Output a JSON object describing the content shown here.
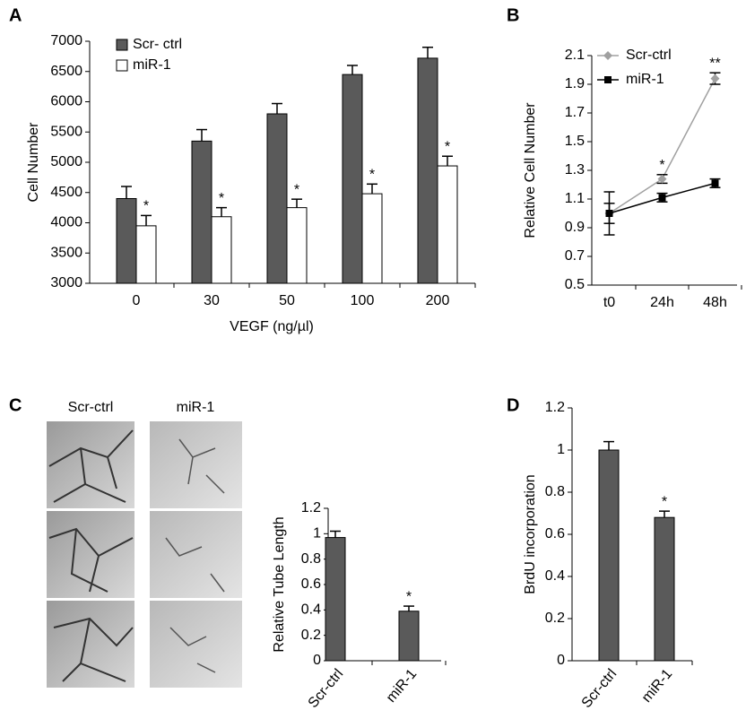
{
  "chart_data": [
    {
      "type": "bar",
      "panel": "A",
      "ylabel": "Cell Number",
      "xlabel": "VEGF (ng/µl)",
      "categories": [
        "0",
        "30",
        "50",
        "100",
        "200"
      ],
      "series": [
        {
          "name": "Scr- ctrl",
          "color": "#5a5a5a",
          "values": [
            4400,
            5350,
            5800,
            6450,
            6720
          ],
          "errors": [
            200,
            190,
            170,
            150,
            180
          ],
          "significance": [
            null,
            null,
            null,
            null,
            null
          ]
        },
        {
          "name": "miR-1",
          "color": "#ffffff",
          "values": [
            3950,
            4100,
            4250,
            4480,
            4940
          ],
          "errors": [
            170,
            150,
            140,
            160,
            160
          ],
          "significance": [
            "*",
            "*",
            "*",
            "*",
            "*"
          ]
        }
      ],
      "ylim": [
        3000,
        7000
      ],
      "yticks": [
        3000,
        3500,
        4000,
        4500,
        5000,
        5500,
        6000,
        6500,
        7000
      ]
    },
    {
      "type": "line",
      "panel": "B",
      "ylabel": "Relative Cell Number",
      "categories": [
        "t0",
        "24h",
        "48h"
      ],
      "series": [
        {
          "name": "Scr-ctrl",
          "color": "#a0a0a0",
          "marker": "diamond",
          "values": [
            1.0,
            1.24,
            1.94
          ],
          "errors": [
            0.15,
            0.03,
            0.04
          ],
          "significance": [
            null,
            "*",
            "**"
          ]
        },
        {
          "name": "miR-1",
          "color": "#000000",
          "marker": "square",
          "values": [
            1.0,
            1.11,
            1.21
          ],
          "errors": [
            0.07,
            0.03,
            0.03
          ],
          "significance": [
            null,
            null,
            null
          ]
        }
      ],
      "ylim": [
        0.5,
        2.1
      ],
      "yticks": [
        0.5,
        0.7,
        0.9,
        1.1,
        1.3,
        1.5,
        1.7,
        1.9,
        2.1
      ]
    },
    {
      "type": "bar",
      "panel": "C",
      "ylabel": "Relative Tube Length",
      "image_columns": [
        "Scr-ctrl",
        "miR-1"
      ],
      "categories": [
        "Scr-ctrl",
        "miR-1"
      ],
      "series": [
        {
          "color": "#5a5a5a",
          "values": [
            0.97,
            0.39
          ],
          "errors": [
            0.05,
            0.04
          ],
          "significance": [
            null,
            "*"
          ]
        }
      ],
      "ylim": [
        0,
        1.2
      ],
      "yticks": [
        0,
        0.2,
        0.4,
        0.6,
        0.8,
        1,
        1.2
      ]
    },
    {
      "type": "bar",
      "panel": "D",
      "ylabel": "BrdU incorporation",
      "categories": [
        "Scr-ctrl",
        "miR-1"
      ],
      "series": [
        {
          "color": "#5a5a5a",
          "values": [
            1.0,
            0.68
          ],
          "errors": [
            0.04,
            0.03
          ],
          "significance": [
            null,
            "*"
          ]
        }
      ],
      "ylim": [
        0,
        1.2
      ],
      "yticks": [
        0,
        0.2,
        0.4,
        0.6,
        0.8,
        1,
        1.2
      ]
    }
  ]
}
